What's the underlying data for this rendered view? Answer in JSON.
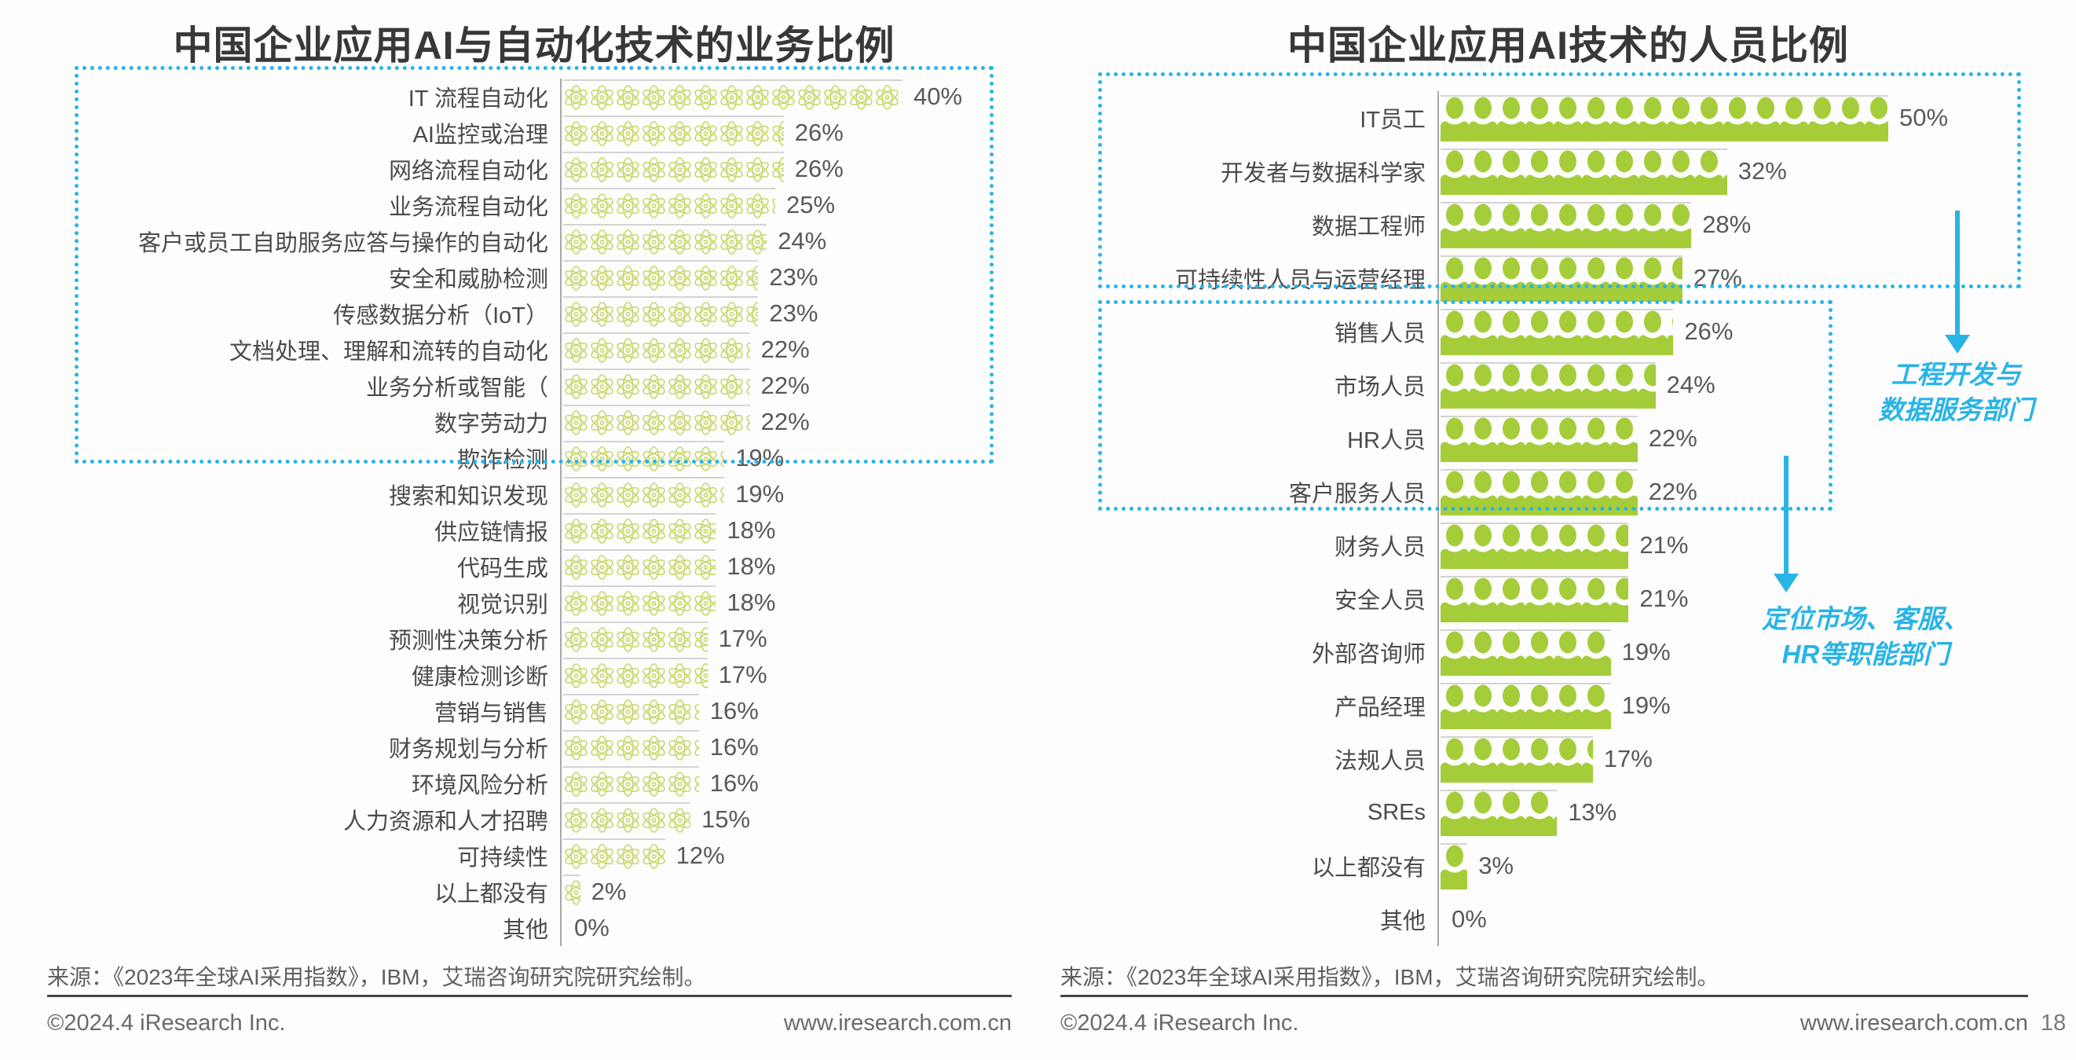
{
  "chart_data": [
    {
      "type": "bar",
      "orientation": "horizontal",
      "pictogram": "atom-flower",
      "title": "中国企业应用AI与自动化技术的业务比例",
      "categories": [
        "IT 流程自动化",
        "AI监控或治理",
        "网络流程自动化",
        "业务流程自动化",
        "客户或员工自助服务应答与操作的自动化",
        "安全和威胁检测",
        "传感数据分析（IoT）",
        "文档处理、理解和流转的自动化",
        "业务分析或智能（",
        "数字劳动力",
        "欺诈检测",
        "搜索和知识发现",
        "供应链情报",
        "代码生成",
        "视觉识别",
        "预测性决策分析",
        "健康检测诊断",
        "营销与销售",
        "财务规划与分析",
        "环境风险分析",
        "人力资源和人才招聘",
        "可持续性",
        "以上都没有",
        "其他"
      ],
      "values": [
        40,
        26,
        26,
        25,
        24,
        23,
        23,
        22,
        22,
        22,
        19,
        19,
        18,
        18,
        18,
        17,
        17,
        16,
        16,
        16,
        15,
        12,
        2,
        0
      ],
      "labels": [
        "40%",
        "26%",
        "26%",
        "25%",
        "24%",
        "23%",
        "23%",
        "22%",
        "22%",
        "22%",
        "19%",
        "19%",
        "18%",
        "18%",
        "18%",
        "17%",
        "17%",
        "16%",
        "16%",
        "16%",
        "15%",
        "12%",
        "2%",
        "0%"
      ],
      "xlim": [
        0,
        42
      ],
      "grid": false,
      "highlight_box": "dotted cyan box around top 10 categories"
    },
    {
      "type": "bar",
      "orientation": "horizontal",
      "pictogram": "person",
      "title": "中国企业应用AI技术的人员比例",
      "categories": [
        "IT员工",
        "开发者与数据科学家",
        "数据工程师",
        "可持续性人员与运营经理",
        "销售人员",
        "市场人员",
        "HR人员",
        "客户服务人员",
        "财务人员",
        "安全人员",
        "外部咨询师",
        "产品经理",
        "法规人员",
        "SREs",
        "以上都没有",
        "其他"
      ],
      "values": [
        50,
        32,
        28,
        27,
        26,
        24,
        22,
        22,
        21,
        21,
        19,
        19,
        17,
        13,
        3,
        0
      ],
      "labels": [
        "50%",
        "32%",
        "28%",
        "27%",
        "26%",
        "24%",
        "22%",
        "22%",
        "21%",
        "21%",
        "19%",
        "19%",
        "17%",
        "13%",
        "3%",
        "0%"
      ],
      "xlim": [
        0,
        52
      ],
      "grid": false,
      "highlight_boxes": [
        "dotted cyan box around top 4 categories",
        "dotted cyan box around rows 销售人员-客户服务人员"
      ]
    }
  ],
  "annotations": [
    {
      "lines": [
        "工程开发与",
        "数据服务部门"
      ],
      "color": "#29b4e7"
    },
    {
      "lines": [
        "定位市场、客服、",
        "HR等职能部门"
      ],
      "color": "#29b4e7"
    }
  ],
  "footer": {
    "source": "来源：《2023年全球AI采用指数》，IBM，艾瑞咨询研究院研究绘制。",
    "copyright": "©2024.4 iResearch Inc.",
    "website": "www.iresearch.com.cn",
    "page": "18"
  },
  "colors": {
    "pictogram_outline_green": "#c8d76a",
    "pictogram_solid_green": "#a5cd39",
    "accent_cyan": "#29b4e7",
    "axis_gray": "#a8a8a8",
    "title_text": "#383838",
    "value_text": "#58595b"
  }
}
